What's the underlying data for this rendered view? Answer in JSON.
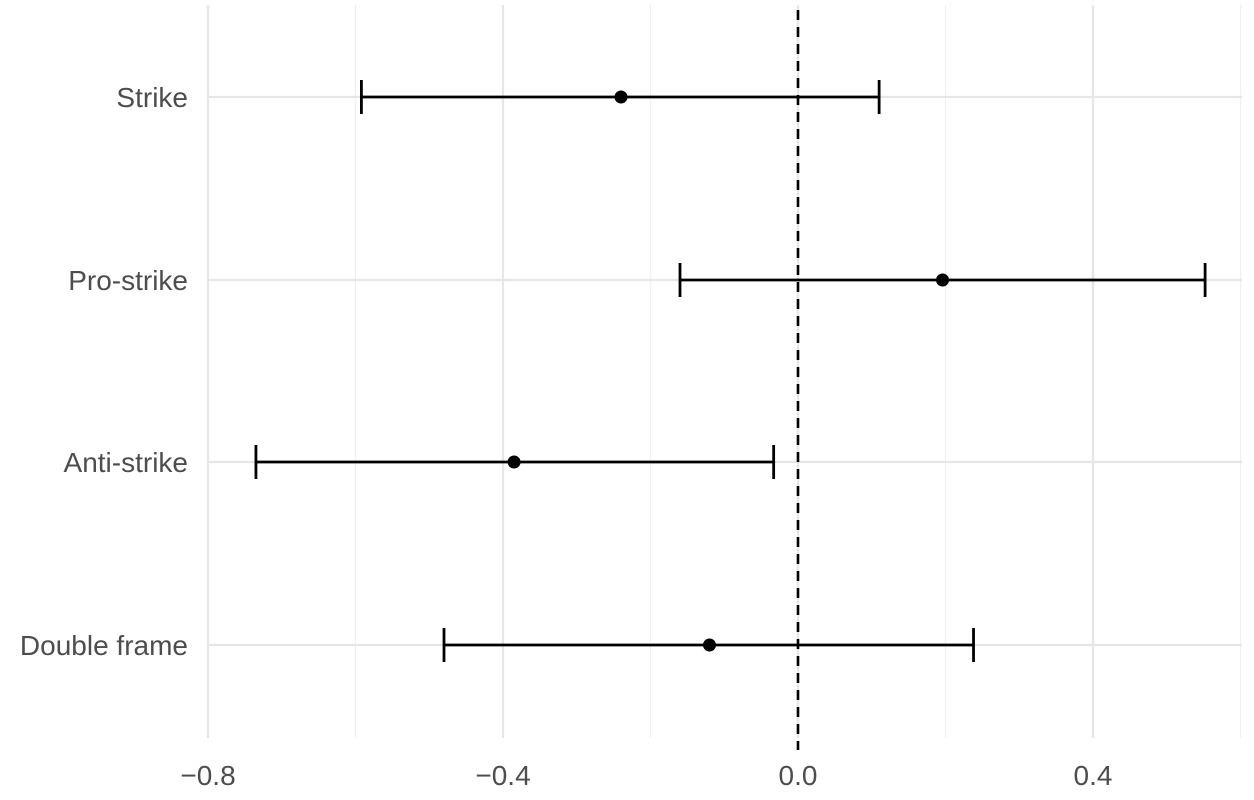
{
  "chart_data": {
    "type": "errorbar",
    "orientation": "horizontal",
    "title": "",
    "xlabel": "",
    "ylabel": "",
    "xlim": [
      -0.8,
      0.6
    ],
    "x_ticks": [
      -0.8,
      -0.4,
      0.0,
      0.4
    ],
    "x_tick_labels": [
      "−0.8",
      "−0.4",
      "0.0",
      "0.4"
    ],
    "reference_line": {
      "x": 0.0,
      "style": "dashed"
    },
    "grid": true,
    "legend": "none",
    "categories": [
      "Strike",
      "Pro-strike",
      "Anti-strike",
      "Double frame"
    ],
    "estimates": [
      -0.24,
      0.196,
      -0.385,
      -0.12
    ],
    "lower": [
      -0.592,
      -0.16,
      -0.735,
      -0.48
    ],
    "upper": [
      0.11,
      0.552,
      -0.033,
      0.238
    ]
  },
  "colors": {
    "background": "#ffffff",
    "grid_major": "#e6e6e6",
    "grid_minor": "#f0f0f0",
    "marks": "#000000",
    "text": "#4d4d4d"
  }
}
